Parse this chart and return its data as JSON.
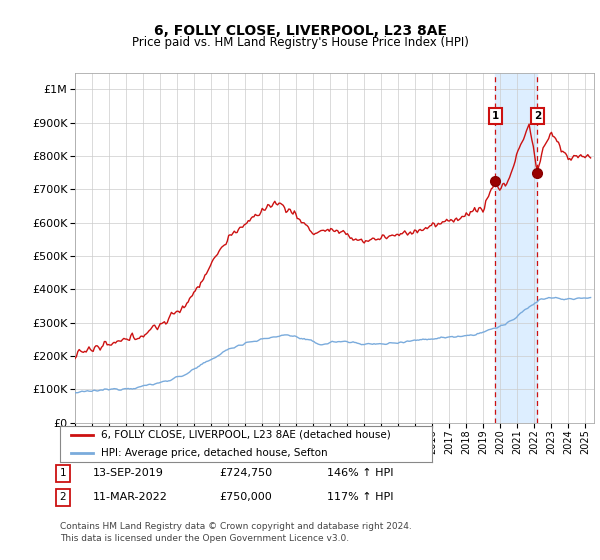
{
  "title": "6, FOLLY CLOSE, LIVERPOOL, L23 8AE",
  "subtitle": "Price paid vs. HM Land Registry's House Price Index (HPI)",
  "ytick_vals": [
    0,
    100000,
    200000,
    300000,
    400000,
    500000,
    600000,
    700000,
    800000,
    900000,
    1000000
  ],
  "ylim": [
    0,
    1050000
  ],
  "xlim_start": 1995.0,
  "xlim_end": 2025.5,
  "hpi_color": "#7aabdc",
  "property_color": "#cc1111",
  "background_color": "#ffffff",
  "grid_color": "#cccccc",
  "legend_label_property": "6, FOLLY CLOSE, LIVERPOOL, L23 8AE (detached house)",
  "legend_label_hpi": "HPI: Average price, detached house, Sefton",
  "transaction1_date": "13-SEP-2019",
  "transaction1_price": "£724,750",
  "transaction1_hpi": "146% ↑ HPI",
  "transaction2_date": "11-MAR-2022",
  "transaction2_price": "£750,000",
  "transaction2_hpi": "117% ↑ HPI",
  "footer": "Contains HM Land Registry data © Crown copyright and database right 2024.\nThis data is licensed under the Open Government Licence v3.0.",
  "shade_color": "#ddeeff",
  "marker1_x": 2019.7,
  "marker2_x": 2022.17,
  "marker1_y": 724750,
  "marker2_y": 750000
}
